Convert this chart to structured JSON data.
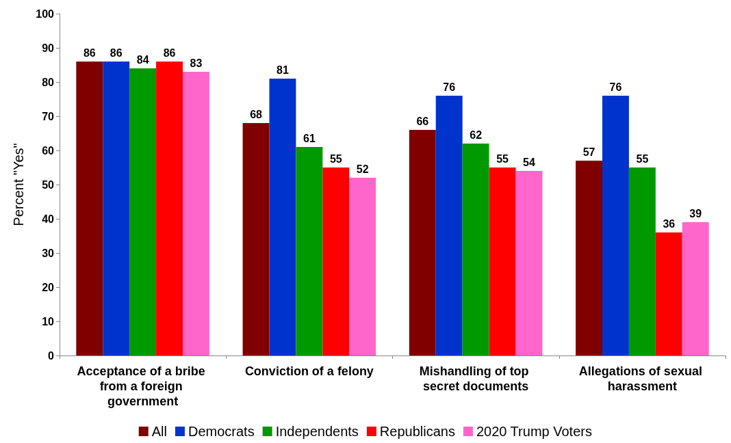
{
  "chart_data": {
    "type": "bar",
    "ylabel": "Percent \"Yes\"",
    "categories": [
      "Acceptance of a bribe from a foreign government",
      "Conviction of a felony",
      "Mishandling of top secret documents",
      "Allegations of sexual harassment"
    ],
    "series": [
      {
        "name": "All",
        "color": "#800000",
        "values": [
          86,
          68,
          66,
          57
        ]
      },
      {
        "name": "Democrats",
        "color": "#0033cc",
        "values": [
          86,
          81,
          76,
          76
        ]
      },
      {
        "name": "Independents",
        "color": "#009900",
        "values": [
          84,
          61,
          62,
          55
        ]
      },
      {
        "name": "Republicans",
        "color": "#ff0000",
        "values": [
          86,
          55,
          55,
          36
        ]
      },
      {
        "name": "2020 Trump Voters",
        "color": "#ff66cc",
        "values": [
          83,
          52,
          54,
          39
        ]
      }
    ],
    "ylim": [
      0,
      100
    ],
    "yticks": [
      0,
      10,
      20,
      30,
      40,
      50,
      60,
      70,
      80,
      90,
      100
    ],
    "grid": false,
    "legend": "bottom",
    "data_labels": true
  }
}
